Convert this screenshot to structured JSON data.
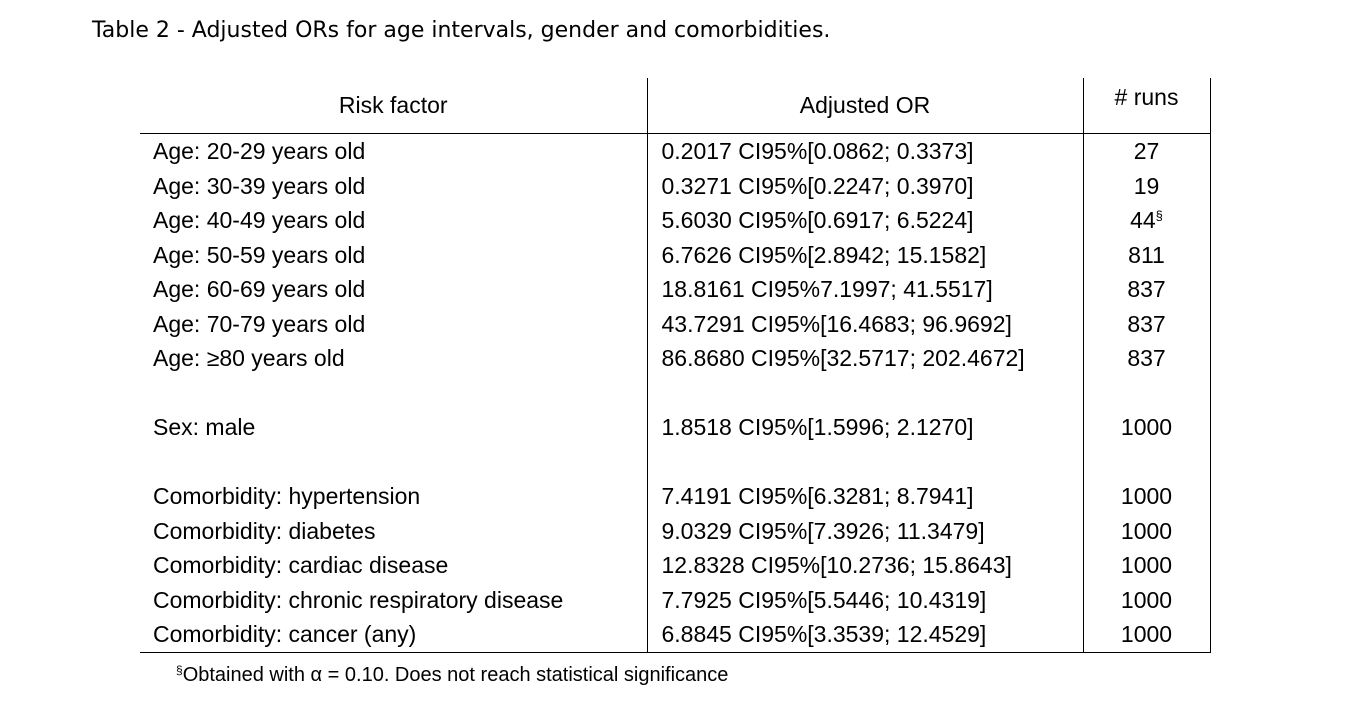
{
  "caption": "Table 2 - Adjusted ORs for age intervals, gender and comorbidities.",
  "table": {
    "headers": [
      "Risk factor",
      "Adjusted OR",
      "# runs"
    ],
    "rows": [
      {
        "factor": "Age: 20-29 years old",
        "or": "0.2017 CI95%[0.0862; 0.3373]",
        "runs": "27",
        "runs_mark": ""
      },
      {
        "factor": "Age: 30-39 years old",
        "or": "0.3271 CI95%[0.2247; 0.3970]",
        "runs": "19",
        "runs_mark": ""
      },
      {
        "factor": "Age: 40-49 years old",
        "or": "5.6030 CI95%[0.6917; 6.5224]",
        "runs": "44",
        "runs_mark": "§"
      },
      {
        "factor": "Age: 50-59 years old",
        "or": "6.7626 CI95%[2.8942; 15.1582]",
        "runs": "811",
        "runs_mark": ""
      },
      {
        "factor": "Age: 60-69 years old",
        "or": "18.8161 CI95%7.1997; 41.5517]",
        "runs": "837",
        "runs_mark": ""
      },
      {
        "factor": "Age: 70-79 years old",
        "or": "43.7291 CI95%[16.4683; 96.9692]",
        "runs": "837",
        "runs_mark": ""
      },
      {
        "factor": "Age: ≥80 years old",
        "or": "86.8680 CI95%[32.5717; 202.4672]",
        "runs": "837",
        "runs_mark": ""
      },
      {
        "factor": "Sex: male",
        "or": "1.8518 CI95%[1.5996; 2.1270]",
        "runs": "1000",
        "runs_mark": ""
      },
      {
        "factor": "Comorbidity: hypertension",
        "or": "7.4191 CI95%[6.3281; 8.7941]",
        "runs": "1000",
        "runs_mark": ""
      },
      {
        "factor": "Comorbidity: diabetes",
        "or": "9.0329 CI95%[7.3926; 11.3479]",
        "runs": "1000",
        "runs_mark": ""
      },
      {
        "factor": "Comorbidity: cardiac disease",
        "or": "12.8328 CI95%[10.2736; 15.8643]",
        "runs": "1000",
        "runs_mark": ""
      },
      {
        "factor": "Comorbidity: chronic respiratory disease",
        "or": "7.7925 CI95%[5.5446; 10.4319]",
        "runs": "1000",
        "runs_mark": ""
      },
      {
        "factor": "Comorbidity: cancer (any)",
        "or": "6.8845 CI95%[3.3539; 12.4529]",
        "runs": "1000",
        "runs_mark": ""
      }
    ]
  },
  "footnote": {
    "mark": "§",
    "text": "Obtained with α = 0.10. Does not reach statistical significance"
  }
}
